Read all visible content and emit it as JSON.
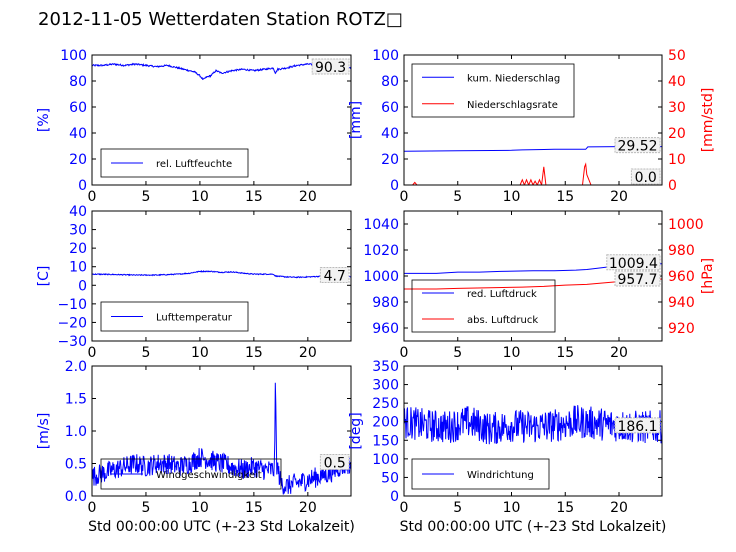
{
  "page": {
    "title": "2012-11-05 Wetterdaten Station ROTZ□"
  },
  "colors": {
    "primary": "#0000ff",
    "secondary": "#ff0000",
    "axis": "#000000"
  },
  "chart_data": [
    {
      "type": "line",
      "xlabel": "",
      "ylabel": "[%]",
      "xlim": [
        0,
        24
      ],
      "ylim": [
        0,
        100
      ],
      "xticks": [
        0,
        5,
        10,
        15,
        20
      ],
      "yticks": [
        0,
        20,
        40,
        60,
        80,
        100
      ],
      "last_value_label": "90.3",
      "legend": "bottom-left",
      "series": [
        {
          "name": "rel. Luftfeuchte",
          "color": "#0000ff",
          "noise": 0.6,
          "x": [
            0,
            1,
            2,
            3,
            4,
            5,
            6,
            7,
            8,
            9,
            9.5,
            10,
            10.3,
            10.6,
            11,
            11.5,
            12,
            13,
            14,
            15,
            16,
            16.8,
            17,
            17.2,
            18,
            19,
            20,
            21,
            22,
            23,
            24
          ],
          "values": [
            92,
            92,
            93,
            92,
            93,
            92,
            91,
            92,
            90,
            88,
            87,
            84,
            81,
            83,
            84,
            88,
            86,
            88,
            89,
            88,
            89,
            90,
            86,
            89,
            90,
            92,
            93,
            92,
            91,
            90,
            90
          ]
        }
      ]
    },
    {
      "type": "line",
      "xlabel": "",
      "ylabel": "[mm]",
      "ylabel_right": "[mm/std]",
      "xlim": [
        0,
        24
      ],
      "ylim": [
        0,
        100
      ],
      "ylim_right": [
        0,
        50
      ],
      "xticks": [
        0,
        5,
        10,
        15,
        20
      ],
      "yticks": [
        0,
        20,
        40,
        60,
        80,
        100
      ],
      "yticks_right": [
        0,
        10,
        20,
        30,
        40,
        50
      ],
      "last_value_label": "29.52",
      "last_value_label_right": "0.0",
      "legend": "top-left",
      "series": [
        {
          "name": "kum. Niederschlag",
          "color": "#0000ff",
          "axis": "left",
          "x": [
            0,
            5,
            10,
            11,
            13,
            14,
            16.9,
            17.1,
            20,
            24
          ],
          "values": [
            26,
            26.3,
            26.7,
            27,
            27.3,
            27.5,
            27.5,
            29.3,
            29.52,
            29.52
          ]
        },
        {
          "name": "Niederschlagsrate",
          "color": "#ff0000",
          "axis": "right",
          "x": [
            0,
            0.8,
            1,
            1.2,
            1.5,
            10.8,
            11,
            11.2,
            11.4,
            11.6,
            11.8,
            12,
            12.2,
            12.4,
            12.6,
            12.8,
            13,
            13.2,
            13.4,
            16.6,
            16.8,
            16.9,
            17,
            17.2,
            17.4,
            24
          ],
          "values": [
            0,
            0,
            1,
            0,
            0,
            0,
            2,
            0,
            2,
            0,
            2,
            0,
            1.5,
            0,
            2,
            0,
            7,
            0,
            0,
            0,
            7,
            8,
            4,
            2,
            0,
            0
          ]
        }
      ]
    },
    {
      "type": "line",
      "xlabel": "",
      "ylabel": "[C]",
      "xlim": [
        0,
        24
      ],
      "ylim": [
        -30,
        40
      ],
      "xticks": [
        0,
        5,
        10,
        15,
        20
      ],
      "yticks": [
        -30,
        -20,
        -10,
        0,
        10,
        20,
        30,
        40
      ],
      "last_value_label": "4.7",
      "legend": "bottom-left",
      "series": [
        {
          "name": "Lufttemperatur",
          "color": "#0000ff",
          "noise": 0.25,
          "x": [
            0,
            2,
            4,
            6,
            8,
            9,
            10,
            11,
            12,
            13,
            14,
            15,
            16,
            16.8,
            17,
            18,
            19,
            20,
            21,
            22,
            24
          ],
          "values": [
            6,
            5.8,
            5.5,
            5.5,
            6,
            6.5,
            7.5,
            7.5,
            7,
            7.2,
            6.5,
            6,
            6,
            6,
            5,
            4.5,
            4.3,
            4.5,
            4.8,
            5,
            4.7
          ]
        }
      ]
    },
    {
      "type": "line",
      "xlabel": "",
      "ylabel": "",
      "ylabel_right": "[hPa]",
      "xlim": [
        0,
        24
      ],
      "ylim": [
        950,
        1050
      ],
      "ylim_right": [
        910,
        1010
      ],
      "xticks": [
        0,
        5,
        10,
        15,
        20
      ],
      "yticks": [
        960,
        980,
        1000,
        1020,
        1040
      ],
      "yticks_right": [
        920,
        940,
        960,
        980,
        1000
      ],
      "last_value_label": "1009.4",
      "last_value_label_right": "957.7",
      "legend": "bottom-left",
      "series": [
        {
          "name": "red. Luftdruck",
          "color": "#0000ff",
          "axis": "left",
          "x": [
            0,
            3,
            5,
            7,
            9,
            12,
            14,
            16,
            17,
            18,
            20,
            22,
            24
          ],
          "values": [
            1002,
            1002,
            1003,
            1003,
            1003.5,
            1004,
            1004,
            1004.5,
            1005,
            1006,
            1008,
            1009,
            1009.4
          ]
        },
        {
          "name": "abs. Luftdruck",
          "color": "#ff0000",
          "axis": "right",
          "x": [
            0,
            3,
            5,
            8,
            11,
            13,
            15,
            17,
            19,
            21,
            22,
            24
          ],
          "values": [
            950,
            950,
            950.5,
            951,
            951.5,
            952,
            953,
            953.5,
            955,
            956.5,
            957.3,
            957.7
          ]
        }
      ]
    },
    {
      "type": "line",
      "xlabel": "Std 00:00:00 UTC (+-23 Std Lokalzeit)",
      "ylabel": "[m/s]",
      "xlim": [
        0,
        24
      ],
      "ylim": [
        0,
        2
      ],
      "xticks": [
        0,
        5,
        10,
        15,
        20
      ],
      "yticks": [
        0.0,
        0.5,
        1.0,
        1.5,
        2.0
      ],
      "last_value_label": "0.5",
      "legend": "bottom-left",
      "series": [
        {
          "name": "Windgeschwindigkeit",
          "color": "#0000ff",
          "noise": 0.16,
          "x": [
            0,
            1,
            2,
            3,
            4,
            5,
            6,
            7,
            8,
            9,
            10,
            11,
            12,
            13,
            14,
            15,
            16,
            16.9,
            17,
            17.1,
            17.5,
            18,
            19,
            20,
            21,
            22,
            23,
            24
          ],
          "values": [
            0.3,
            0.35,
            0.4,
            0.45,
            0.5,
            0.45,
            0.5,
            0.5,
            0.45,
            0.5,
            0.6,
            0.55,
            0.5,
            0.45,
            0.4,
            0.45,
            0.4,
            0.4,
            1.8,
            0.5,
            0.2,
            0.15,
            0.2,
            0.25,
            0.3,
            0.35,
            0.45,
            0.5
          ]
        }
      ]
    },
    {
      "type": "line",
      "xlabel": "Std 00:00:00 UTC (+-23 Std Lokalzeit)",
      "ylabel": "[deg]",
      "xlim": [
        0,
        24
      ],
      "ylim": [
        0,
        350
      ],
      "xticks": [
        0,
        5,
        10,
        15,
        20
      ],
      "yticks": [
        0,
        50,
        100,
        150,
        200,
        250,
        300,
        350
      ],
      "last_value_label": "186.1",
      "legend": "bottom-left",
      "series": [
        {
          "name": "Windrichtung",
          "color": "#0000ff",
          "noise": 45,
          "x": [
            0,
            2,
            4,
            6,
            8,
            10,
            12,
            14,
            16,
            18,
            20,
            22,
            24
          ],
          "values": [
            200,
            190,
            185,
            200,
            180,
            190,
            185,
            190,
            200,
            195,
            190,
            185,
            186
          ]
        }
      ]
    }
  ]
}
